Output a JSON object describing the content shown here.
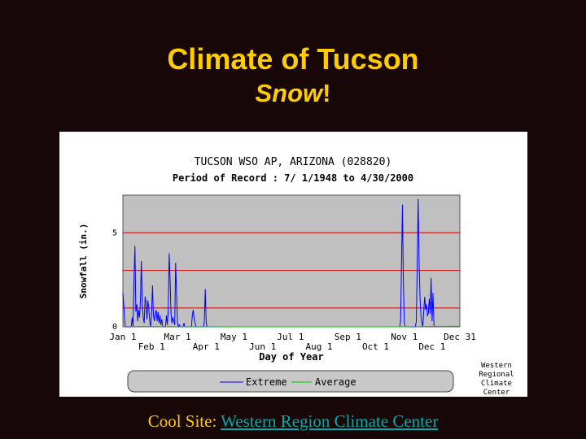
{
  "slide": {
    "title": "Climate of Tucson",
    "subtitle_em": "Snow",
    "subtitle_suffix": "!",
    "footer_prefix": "Cool Site: ",
    "footer_link": "Western Region Climate Center"
  },
  "colors": {
    "title": "#ffcc00",
    "background": "#170707",
    "link": "#00aaaa",
    "extreme": "#0000ff",
    "average": "#00cc00",
    "gridline": "#cc0000",
    "plot_bg": "#c0c0c0"
  },
  "chart_data": {
    "type": "line",
    "title": "TUCSON WSO AP, ARIZONA   (028820)",
    "subtitle": "Period of Record : 7/ 1/1948 to 4/30/2000",
    "xlabel": "Day of Year",
    "ylabel": "Snowfall (in.)",
    "xlim": [
      1,
      365
    ],
    "ylim": [
      0,
      7
    ],
    "y_ticks": [
      0,
      5
    ],
    "gridlines_y": [
      1,
      3,
      5
    ],
    "x_ticks_top": [
      {
        "label": "Jan 1",
        "day": 1
      },
      {
        "label": "Mar 1",
        "day": 60
      },
      {
        "label": "May 1",
        "day": 121
      },
      {
        "label": "Jul 1",
        "day": 182
      },
      {
        "label": "Sep 1",
        "day": 244
      },
      {
        "label": "Nov 1",
        "day": 305
      },
      {
        "label": "Dec 31",
        "day": 365
      }
    ],
    "x_ticks_bottom": [
      {
        "label": "Feb 1",
        "day": 32
      },
      {
        "label": "Apr 1",
        "day": 91
      },
      {
        "label": "Jun 1",
        "day": 152
      },
      {
        "label": "Aug 1",
        "day": 213
      },
      {
        "label": "Oct 1",
        "day": 274
      },
      {
        "label": "Dec 1",
        "day": 335
      }
    ],
    "legend": {
      "placement": "bottom",
      "entries": [
        "Extreme",
        "Average"
      ],
      "credit": [
        "Western",
        "Regional",
        "Climate",
        "Center"
      ]
    },
    "series": [
      {
        "name": "Extreme",
        "color": "#0000ff",
        "points": [
          [
            1,
            1.8
          ],
          [
            2,
            1.2
          ],
          [
            3,
            0.2
          ],
          [
            4,
            0
          ],
          [
            10,
            0
          ],
          [
            11,
            0.5
          ],
          [
            12,
            0
          ],
          [
            13,
            2.5
          ],
          [
            14,
            4.3
          ],
          [
            15,
            0.8
          ],
          [
            16,
            1.2
          ],
          [
            17,
            0.3
          ],
          [
            18,
            0.9
          ],
          [
            19,
            0.5
          ],
          [
            20,
            1.5
          ],
          [
            21,
            3.5
          ],
          [
            22,
            1.0
          ],
          [
            23,
            0.5
          ],
          [
            24,
            0.2
          ],
          [
            25,
            1.6
          ],
          [
            26,
            1.3
          ],
          [
            27,
            0.4
          ],
          [
            28,
            1.4
          ],
          [
            29,
            1.0
          ],
          [
            30,
            0.3
          ],
          [
            31,
            0
          ],
          [
            32,
            0.8
          ],
          [
            33,
            2.2
          ],
          [
            34,
            0.6
          ],
          [
            35,
            0.3
          ],
          [
            36,
            0.7
          ],
          [
            37,
            0.9
          ],
          [
            38,
            0.3
          ],
          [
            39,
            0.8
          ],
          [
            40,
            0.2
          ],
          [
            41,
            0.6
          ],
          [
            42,
            0.1
          ],
          [
            43,
            0.4
          ],
          [
            44,
            0
          ],
          [
            47,
            0
          ],
          [
            48,
            0.6
          ],
          [
            49,
            0.1
          ],
          [
            50,
            0.9
          ],
          [
            51,
            3.9
          ],
          [
            52,
            2.5
          ],
          [
            53,
            0.7
          ],
          [
            54,
            0.2
          ],
          [
            55,
            0.5
          ],
          [
            56,
            0.3
          ],
          [
            57,
            0.1
          ],
          [
            58,
            3.4
          ],
          [
            59,
            1.7
          ],
          [
            60,
            0.2
          ],
          [
            61,
            0
          ],
          [
            62,
            0.1
          ],
          [
            63,
            0
          ],
          [
            66,
            0
          ],
          [
            67,
            0.2
          ],
          [
            68,
            0
          ],
          [
            75,
            0
          ],
          [
            76,
            0.6
          ],
          [
            77,
            0.9
          ],
          [
            78,
            0.4
          ],
          [
            79,
            0.2
          ],
          [
            80,
            0
          ],
          [
            88,
            0
          ],
          [
            89,
            0.3
          ],
          [
            90,
            2.0
          ],
          [
            91,
            0.2
          ],
          [
            92,
            0
          ],
          [
            300,
            0
          ],
          [
            301,
            0.3
          ],
          [
            302,
            3.2
          ],
          [
            303,
            6.5
          ],
          [
            304,
            2.4
          ],
          [
            305,
            0.2
          ],
          [
            306,
            0
          ],
          [
            317,
            0
          ],
          [
            318,
            0.3
          ],
          [
            319,
            3.4
          ],
          [
            320,
            6.8
          ],
          [
            321,
            3.3
          ],
          [
            322,
            1.5
          ],
          [
            323,
            0.6
          ],
          [
            324,
            0.2
          ],
          [
            325,
            0
          ],
          [
            326,
            0.8
          ],
          [
            327,
            1.6
          ],
          [
            328,
            0.9
          ],
          [
            329,
            1.2
          ],
          [
            330,
            0.6
          ],
          [
            331,
            0.7
          ],
          [
            332,
            1.5
          ],
          [
            333,
            0.7
          ],
          [
            334,
            2.6
          ],
          [
            335,
            0.3
          ],
          [
            336,
            1.8
          ],
          [
            337,
            0.1
          ],
          [
            338,
            0
          ]
        ]
      },
      {
        "name": "Average",
        "color": "#00cc00",
        "points": [
          [
            1,
            0.02
          ],
          [
            60,
            0.01
          ],
          [
            120,
            0
          ],
          [
            300,
            0
          ],
          [
            335,
            0.02
          ],
          [
            365,
            0.03
          ]
        ]
      }
    ]
  }
}
